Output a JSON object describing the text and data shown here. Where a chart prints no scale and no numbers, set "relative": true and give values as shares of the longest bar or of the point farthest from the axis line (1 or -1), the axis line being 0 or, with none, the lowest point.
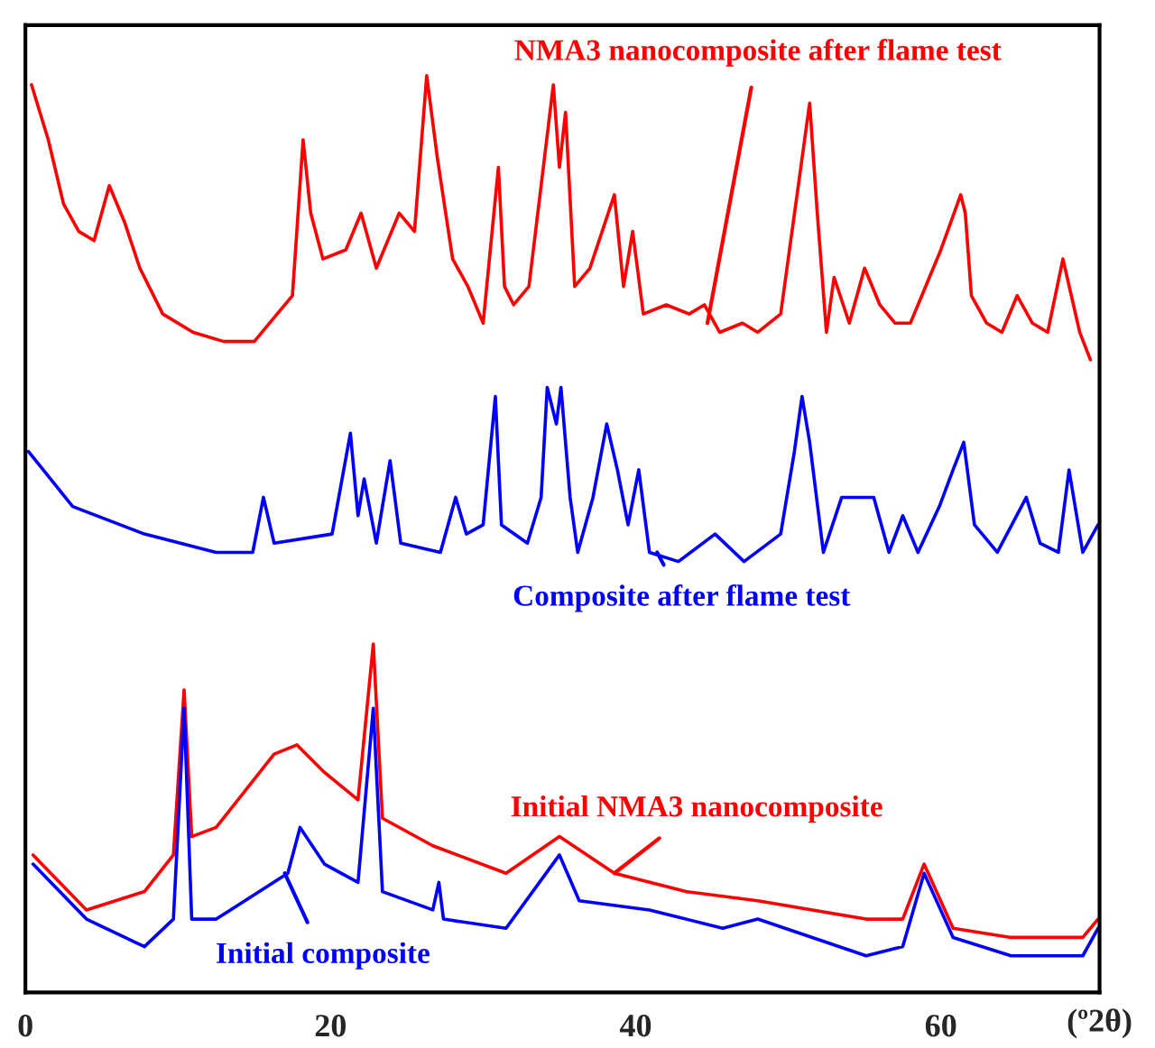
{
  "chart_data": {
    "type": "line",
    "relative": true,
    "xlabel": "(º2θ)",
    "xlim": [
      0,
      70.4
    ],
    "xticks": [
      0,
      20,
      40,
      60
    ],
    "tick_labels": "x",
    "grid": false,
    "legend": false,
    "marker": "none",
    "line_style": "solid",
    "series": [
      {
        "color": "#ff0000",
        "x": [
          0.4,
          1.5,
          2.5,
          3.5,
          4.5,
          5.5,
          6.5,
          7.5,
          9,
          11,
          13,
          15,
          16.5,
          17.5,
          18.2,
          18.7,
          19.5,
          21,
          22,
          23,
          24.5,
          25.5,
          26.3,
          27,
          28,
          29,
          30,
          31,
          31.4,
          32,
          33,
          34.6,
          35,
          35.4,
          36,
          37,
          38.6,
          39.2,
          39.8,
          40.5,
          42,
          43.5,
          44.5,
          45.5,
          47,
          48,
          49.5,
          51.4,
          51.9,
          52.5,
          53,
          54,
          55,
          56,
          57,
          58,
          60,
          61.3,
          61.6,
          62,
          63,
          64,
          65,
          66,
          67,
          68,
          69.1,
          69.8
        ],
        "values": [
          0.99,
          0.93,
          0.86,
          0.83,
          0.82,
          0.88,
          0.84,
          0.79,
          0.74,
          0.72,
          0.71,
          0.71,
          0.74,
          0.76,
          0.93,
          0.85,
          0.8,
          0.81,
          0.85,
          0.79,
          0.85,
          0.83,
          1.0,
          0.91,
          0.8,
          0.77,
          0.73,
          0.9,
          0.77,
          0.75,
          0.77,
          0.99,
          0.9,
          0.96,
          0.77,
          0.79,
          0.87,
          0.77,
          0.83,
          0.74,
          0.75,
          0.74,
          0.75,
          0.72,
          0.73,
          0.72,
          0.74,
          0.97,
          0.85,
          0.72,
          0.78,
          0.73,
          0.79,
          0.75,
          0.73,
          0.73,
          0.81,
          0.87,
          0.85,
          0.76,
          0.73,
          0.72,
          0.76,
          0.73,
          0.72,
          0.8,
          0.72,
          0.69
        ]
      },
      {
        "color": "#0000ff",
        "x": [
          0.2,
          3.1,
          7.8,
          12.5,
          14.9,
          15.6,
          16.3,
          20.1,
          21.3,
          21.8,
          22.2,
          23,
          23.9,
          24.6,
          27.2,
          28.2,
          28.9,
          30,
          30.8,
          31.2,
          32.9,
          33.8,
          34.2,
          34.8,
          35.1,
          35.7,
          36.2,
          37.2,
          38.1,
          38.8,
          39.5,
          40.2,
          40.9,
          42.8,
          45.2,
          47.1,
          49.5,
          50.4,
          50.9,
          51.4,
          52.3,
          53.5,
          54.7,
          55.6,
          56.6,
          57.5,
          58.5,
          59.9,
          60.8,
          61.5,
          62.2,
          63.7,
          65.6,
          66.5,
          67.7,
          68.4,
          69.3,
          70.3
        ],
        "values": [
          0.59,
          0.53,
          0.5,
          0.48,
          0.48,
          0.54,
          0.49,
          0.5,
          0.61,
          0.52,
          0.56,
          0.49,
          0.58,
          0.49,
          0.48,
          0.54,
          0.5,
          0.51,
          0.65,
          0.51,
          0.49,
          0.54,
          0.66,
          0.62,
          0.66,
          0.54,
          0.48,
          0.54,
          0.62,
          0.57,
          0.51,
          0.57,
          0.48,
          0.47,
          0.5,
          0.47,
          0.5,
          0.59,
          0.65,
          0.6,
          0.48,
          0.54,
          0.54,
          0.54,
          0.48,
          0.52,
          0.48,
          0.53,
          0.57,
          0.6,
          0.51,
          0.48,
          0.54,
          0.49,
          0.48,
          0.57,
          0.48,
          0.51
        ]
      },
      {
        "color": "#ff0000",
        "x": [
          0.5,
          4,
          7.8,
          9.7,
          10.4,
          10.9,
          12.5,
          16.3,
          17.8,
          19.6,
          21.8,
          22.8,
          23.4,
          26.7,
          31.5,
          35,
          38.6,
          43.3,
          48,
          55.1,
          57.5,
          58.9,
          60.8,
          64.6,
          69.3,
          70.3
        ],
        "values": [
          0.15,
          0.09,
          0.11,
          0.15,
          0.33,
          0.17,
          0.18,
          0.26,
          0.27,
          0.24,
          0.21,
          0.38,
          0.19,
          0.16,
          0.13,
          0.17,
          0.13,
          0.11,
          0.1,
          0.08,
          0.08,
          0.14,
          0.07,
          0.06,
          0.06,
          0.08
        ]
      },
      {
        "color": "#0000ff",
        "x": [
          0.5,
          4,
          7.8,
          9.7,
          10.4,
          10.9,
          12.5,
          17.2,
          18,
          19.6,
          21.8,
          22.8,
          23.4,
          26.7,
          27.1,
          27.4,
          31.5,
          35,
          36.3,
          40.9,
          45.7,
          48,
          55.1,
          57.5,
          58.9,
          60.8,
          64.6,
          69.3,
          70.3
        ],
        "values": [
          0.14,
          0.08,
          0.05,
          0.08,
          0.31,
          0.08,
          0.08,
          0.13,
          0.18,
          0.14,
          0.12,
          0.31,
          0.11,
          0.09,
          0.12,
          0.08,
          0.07,
          0.15,
          0.1,
          0.09,
          0.07,
          0.08,
          0.04,
          0.05,
          0.13,
          0.06,
          0.04,
          0.04,
          0.07
        ]
      }
    ],
    "annotations": [
      {
        "text": "NMA3 nanocomposite after flame test",
        "x": 44.7,
        "y": 0.73
      },
      {
        "text": "Composite after flame test",
        "x": 41.4,
        "y": 0.48
      },
      {
        "text": "Initial NMA3 nanocomposite",
        "x": 38.6,
        "y": 0.13
      },
      {
        "text": "Initial composite",
        "x": 17,
        "y": 0.13
      }
    ]
  }
}
